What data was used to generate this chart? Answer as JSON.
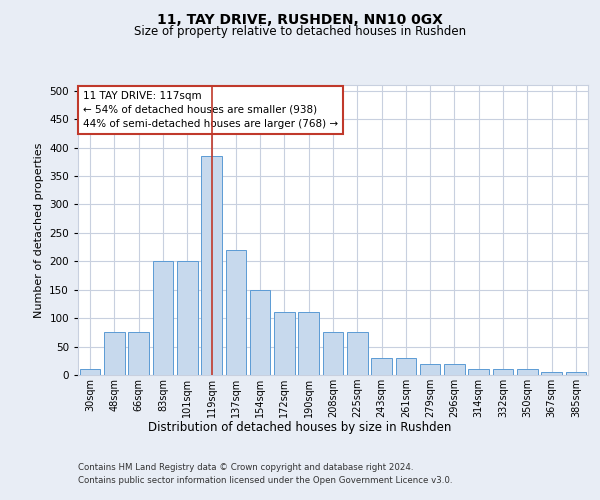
{
  "title1": "11, TAY DRIVE, RUSHDEN, NN10 0GX",
  "title2": "Size of property relative to detached houses in Rushden",
  "xlabel": "Distribution of detached houses by size in Rushden",
  "ylabel": "Number of detached properties",
  "categories": [
    "30sqm",
    "48sqm",
    "66sqm",
    "83sqm",
    "101sqm",
    "119sqm",
    "137sqm",
    "154sqm",
    "172sqm",
    "190sqm",
    "208sqm",
    "225sqm",
    "243sqm",
    "261sqm",
    "279sqm",
    "296sqm",
    "314sqm",
    "332sqm",
    "350sqm",
    "367sqm",
    "385sqm"
  ],
  "values": [
    10,
    75,
    75,
    200,
    200,
    385,
    220,
    150,
    110,
    110,
    75,
    75,
    30,
    30,
    20,
    20,
    10,
    10,
    10,
    5,
    5
  ],
  "bar_color": "#c7d9ed",
  "bar_edge_color": "#5b9bd5",
  "vline_x": 5,
  "vline_color": "#c0392b",
  "annotation_line1": "11 TAY DRIVE: 117sqm",
  "annotation_line2": "← 54% of detached houses are smaller (938)",
  "annotation_line3": "44% of semi-detached houses are larger (768) →",
  "annotation_box_color": "#c0392b",
  "ylim": [
    0,
    510
  ],
  "yticks": [
    0,
    50,
    100,
    150,
    200,
    250,
    300,
    350,
    400,
    450,
    500
  ],
  "footer1": "Contains HM Land Registry data © Crown copyright and database right 2024.",
  "footer2": "Contains public sector information licensed under the Open Government Licence v3.0.",
  "bg_color": "#e8edf5",
  "plot_bg_color": "#ffffff",
  "grid_color": "#c8d0df"
}
